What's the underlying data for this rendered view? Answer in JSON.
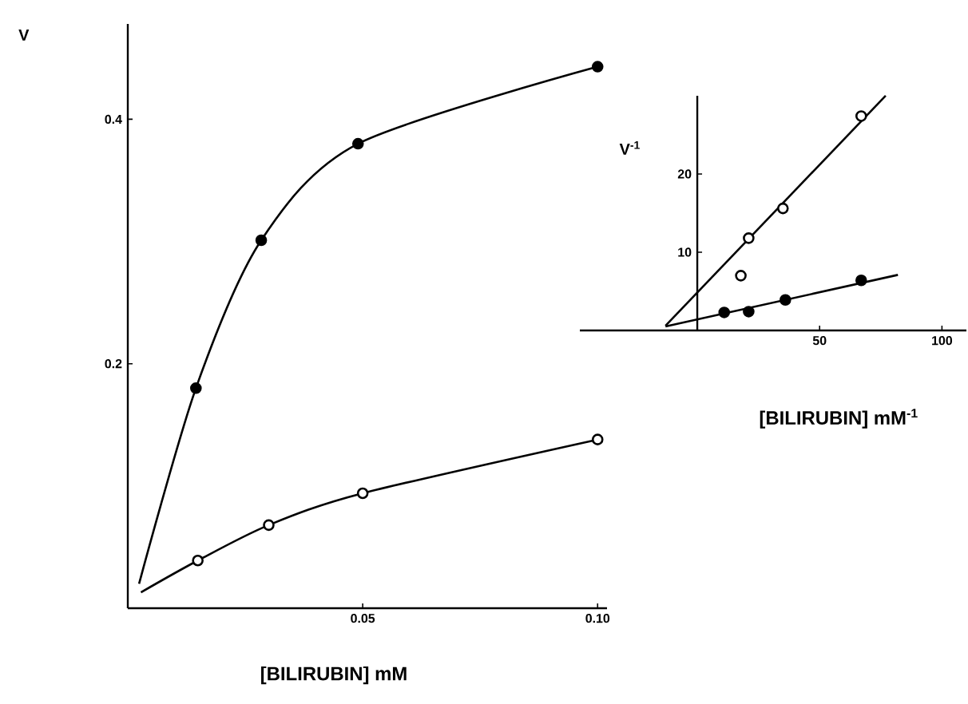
{
  "chart_data": [
    {
      "type": "line",
      "xlabel": "[BILIRUBIN] mM",
      "ylabel": "V",
      "xlim": [
        0,
        0.102
      ],
      "ylim": [
        0,
        0.478
      ],
      "xticks": [
        0.05,
        {
          "value": 0.1,
          "label": "0.10"
        }
      ],
      "yticks": [
        0.2,
        0.4
      ],
      "series": [
        {
          "marker": "none",
          "line_style": "solid",
          "color": "#000000",
          "x": [
            0.0024,
            0.0145,
            0.0284,
            0.049,
            0.1
          ],
          "values": [
            0.02,
            0.18,
            0.301,
            0.38,
            0.443
          ]
        },
        {
          "marker": "none",
          "line_style": "solid",
          "color": "#000000",
          "x": [
            0.0028,
            0.0149,
            0.03,
            0.05,
            0.1
          ],
          "values": [
            0.013,
            0.039,
            0.068,
            0.094,
            0.138
          ]
        },
        {
          "type": "scatter",
          "marker": "circle",
          "color": "#000000",
          "x": [
            0.0145,
            0.0284,
            0.049,
            0.1
          ],
          "values": [
            0.18,
            0.301,
            0.38,
            0.443
          ]
        },
        {
          "type": "scatter",
          "marker": "circle",
          "color": "#ffffff",
          "x": [
            0.0149,
            0.03,
            0.05,
            0.1
          ],
          "values": [
            0.039,
            0.068,
            0.094,
            0.138
          ]
        }
      ]
    },
    {
      "type": "line",
      "xlabel": "[BILIRUBIN] mM$^{-1}$",
      "ylabel": "V$^{-1}$",
      "xlim": [
        -48,
        110
      ],
      "ylim": [
        0,
        30
      ],
      "xticks": [
        50,
        100
      ],
      "yticks": [
        10,
        20
      ],
      "series": [
        {
          "marker": "none",
          "line_style": "solid",
          "color": "#000000",
          "x": [
            -13,
            77
          ],
          "values": [
            0.6,
            30
          ]
        },
        {
          "marker": "none",
          "line_style": "solid",
          "color": "#000000",
          "x": [
            -13,
            82
          ],
          "values": [
            0.5,
            7.1
          ]
        },
        {
          "type": "scatter",
          "marker": "circle",
          "color": "#ffffff",
          "x": [
            17.8,
            21,
            35,
            67
          ],
          "values": [
            7.0,
            11.8,
            15.6,
            27.4
          ]
        },
        {
          "type": "scatter",
          "marker": "circle",
          "color": "#000000",
          "x": [
            11,
            21,
            36,
            67
          ],
          "values": [
            2.3,
            2.4,
            3.9,
            6.4
          ]
        }
      ]
    }
  ]
}
